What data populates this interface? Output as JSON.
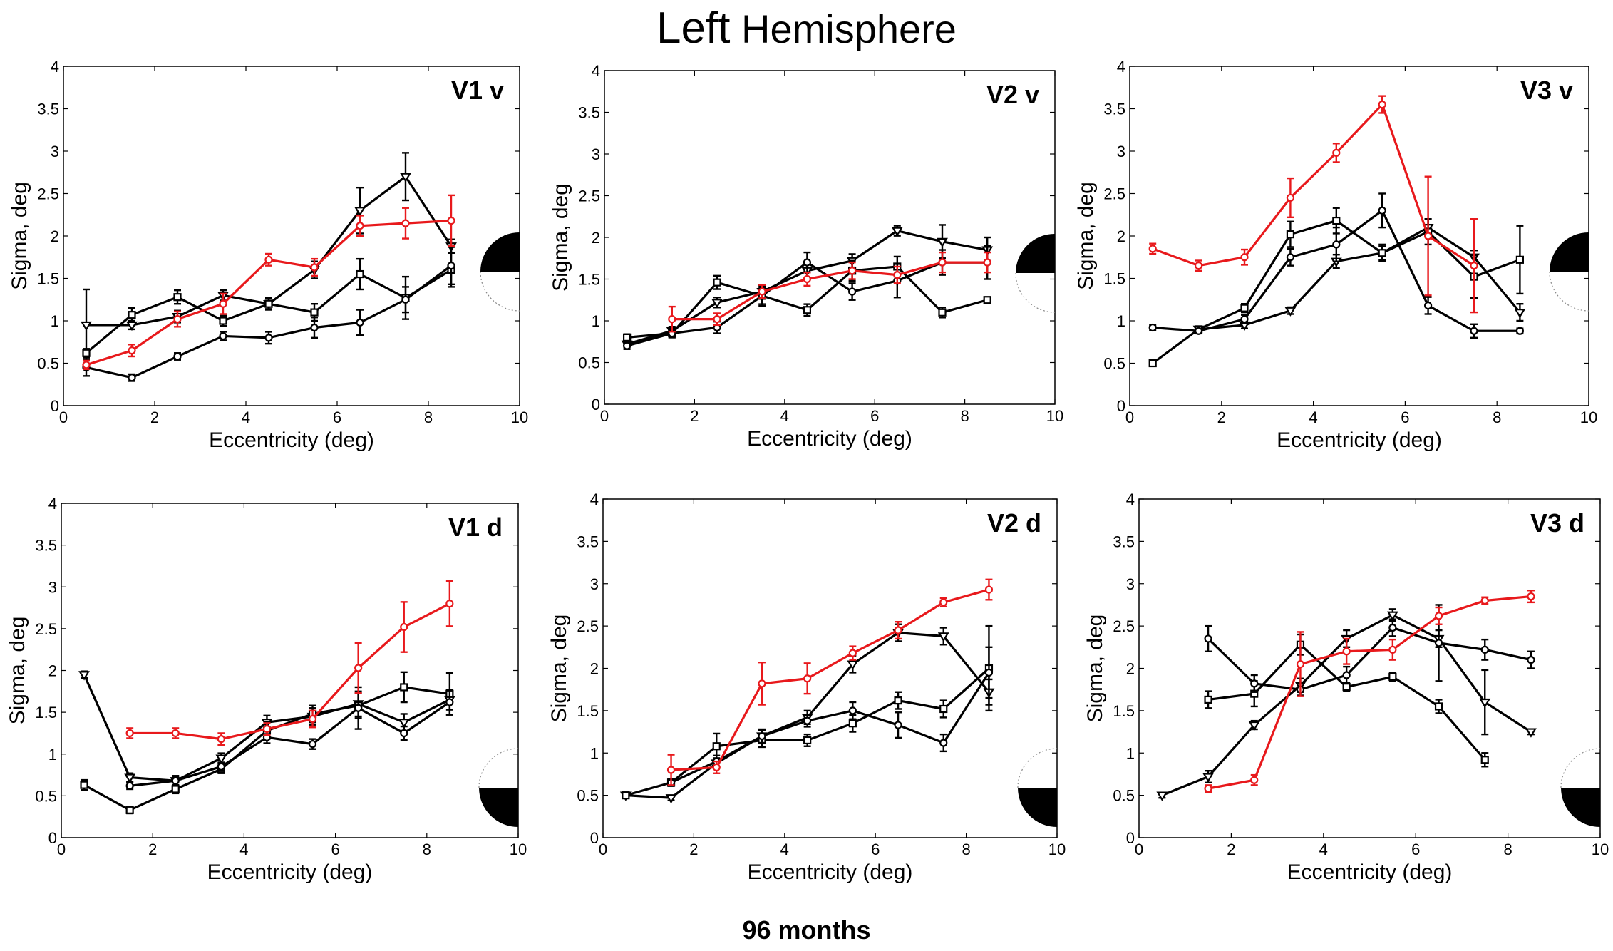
{
  "title": {
    "part1": "Left",
    "part2": "Hemisphere"
  },
  "subtitle": "96 months",
  "colors": {
    "highlight": "#e8191c",
    "series": "#000000"
  },
  "chart_data": [
    {
      "type": "line",
      "label": "V1 v",
      "xlabel": "Eccentricity (deg)",
      "ylabel": "Sigma, deg",
      "xlim": [
        0,
        10
      ],
      "ylim": [
        0,
        4
      ],
      "xticks": [
        "0",
        "2",
        "4",
        "6",
        "8",
        "10"
      ],
      "yticks": [
        "0",
        "0.5",
        "1",
        "1.5",
        "2",
        "2.5",
        "3",
        "3.5",
        "4"
      ],
      "quadrant": "upper-left",
      "series": [
        {
          "name": "red",
          "marker": "circle",
          "color": "#e8191c",
          "x": [
            0.5,
            1.5,
            2.5,
            3.5,
            4.5,
            5.5,
            6.5,
            7.5,
            8.5
          ],
          "y": [
            0.48,
            0.65,
            1.02,
            1.2,
            1.72,
            1.63,
            2.12,
            2.15,
            2.18
          ],
          "err": [
            0.05,
            0.07,
            0.09,
            0.12,
            0.07,
            0.1,
            0.12,
            0.18,
            0.3
          ]
        },
        {
          "name": "triangle",
          "marker": "triangle",
          "color": "#000000",
          "x": [
            0.5,
            1.5,
            2.5,
            3.5,
            4.5,
            5.5,
            6.5,
            7.5,
            8.5
          ],
          "y": [
            0.95,
            0.95,
            1.05,
            1.3,
            1.2,
            1.6,
            2.3,
            2.7,
            1.88
          ],
          "err": [
            0.42,
            0.05,
            0.07,
            0.06,
            0.07,
            0.1,
            0.27,
            0.28,
            0.08
          ]
        },
        {
          "name": "square",
          "marker": "square",
          "color": "#000000",
          "x": [
            0.5,
            1.5,
            2.5,
            3.5,
            4.5,
            5.5,
            6.5,
            7.5,
            8.5
          ],
          "y": [
            0.62,
            1.07,
            1.28,
            1.0,
            1.2,
            1.1,
            1.55,
            1.27,
            1.6
          ],
          "err": [
            0.05,
            0.08,
            0.08,
            0.06,
            0.06,
            0.1,
            0.18,
            0.25,
            0.2
          ]
        },
        {
          "name": "circle",
          "marker": "circle",
          "color": "#000000",
          "x": [
            0.5,
            1.5,
            2.5,
            3.5,
            4.5,
            5.5,
            6.5,
            7.5,
            8.5
          ],
          "y": [
            0.45,
            0.33,
            0.58,
            0.82,
            0.8,
            0.92,
            0.98,
            1.25,
            1.65
          ],
          "err": [
            0.1,
            0.04,
            0.04,
            0.05,
            0.07,
            0.12,
            0.15,
            0.15,
            0.22
          ]
        }
      ]
    },
    {
      "type": "line",
      "label": "V2 v",
      "xlabel": "Eccentricity (deg)",
      "ylabel": "Sigma, deg",
      "xlim": [
        0,
        10
      ],
      "ylim": [
        0,
        4
      ],
      "xticks": [
        "0",
        "2",
        "4",
        "6",
        "8",
        "10"
      ],
      "yticks": [
        "0",
        "0.5",
        "1",
        "1.5",
        "2",
        "2.5",
        "3",
        "3.5",
        "4"
      ],
      "quadrant": "upper-left",
      "series": [
        {
          "name": "red",
          "marker": "circle",
          "color": "#e8191c",
          "x": [
            1.5,
            2.5,
            3.5,
            4.5,
            5.5,
            6.5,
            7.5,
            8.5
          ],
          "y": [
            1.02,
            1.02,
            1.35,
            1.5,
            1.6,
            1.55,
            1.7,
            1.7
          ],
          "err": [
            0.15,
            0.07,
            0.08,
            0.08,
            0.1,
            0.1,
            0.12,
            0.12
          ]
        },
        {
          "name": "triangle",
          "marker": "triangle",
          "color": "#000000",
          "x": [
            0.5,
            1.5,
            2.5,
            3.5,
            4.5,
            5.5,
            6.5,
            7.5,
            8.5
          ],
          "y": [
            0.72,
            0.88,
            1.22,
            1.35,
            1.6,
            1.72,
            2.08,
            1.95,
            1.85
          ],
          "err": [
            0.04,
            0.05,
            0.06,
            0.08,
            0.1,
            0.08,
            0.06,
            0.2,
            0.15
          ]
        },
        {
          "name": "square",
          "marker": "square",
          "color": "#000000",
          "x": [
            0.5,
            1.5,
            2.5,
            3.5,
            4.5,
            5.5,
            6.5,
            7.5,
            8.5
          ],
          "y": [
            0.8,
            0.85,
            1.46,
            1.3,
            1.13,
            1.6,
            1.65,
            1.1,
            1.25
          ],
          "err": [
            0.04,
            0.05,
            0.08,
            0.1,
            0.07,
            0.12,
            0.12,
            0.06,
            0.03
          ]
        },
        {
          "name": "circle",
          "marker": "circle",
          "color": "#000000",
          "x": [
            0.5,
            1.5,
            2.5,
            3.5,
            4.5,
            5.5,
            6.5,
            7.5,
            8.5
          ],
          "y": [
            0.7,
            0.85,
            0.92,
            1.3,
            1.7,
            1.35,
            1.48,
            1.7,
            1.7
          ],
          "err": [
            0.04,
            0.05,
            0.07,
            0.12,
            0.12,
            0.1,
            0.2,
            0.15,
            0.2
          ]
        }
      ]
    },
    {
      "type": "line",
      "label": "V3 v",
      "xlabel": "Eccentricity (deg)",
      "ylabel": "Sigma, deg",
      "xlim": [
        0,
        10
      ],
      "ylim": [
        0,
        4
      ],
      "xticks": [
        "0",
        "2",
        "4",
        "6",
        "8",
        "10"
      ],
      "yticks": [
        "0",
        "0.5",
        "1",
        "1.5",
        "2",
        "2.5",
        "3",
        "3.5",
        "4"
      ],
      "quadrant": "upper-left",
      "series": [
        {
          "name": "red",
          "marker": "circle",
          "color": "#e8191c",
          "x": [
            0.5,
            1.5,
            2.5,
            3.5,
            4.5,
            5.5,
            6.5,
            7.5
          ],
          "y": [
            1.85,
            1.65,
            1.75,
            2.45,
            2.98,
            3.55,
            2.0,
            1.65
          ],
          "err": [
            0.06,
            0.06,
            0.09,
            0.23,
            0.11,
            0.1,
            0.7,
            0.55
          ]
        },
        {
          "name": "triangle",
          "marker": "triangle",
          "color": "#000000",
          "x": [
            1.5,
            2.5,
            3.5,
            4.5,
            5.5,
            6.5,
            7.5,
            8.5
          ],
          "y": [
            0.9,
            0.95,
            1.12,
            1.7,
            1.8,
            2.1,
            1.75,
            1.1
          ],
          "err": [
            0.03,
            0.04,
            0.04,
            0.08,
            0.08,
            0.1,
            0.08,
            0.1
          ]
        },
        {
          "name": "square",
          "marker": "square",
          "color": "#000000",
          "x": [
            0.5,
            1.5,
            2.5,
            3.5,
            4.5,
            5.5,
            6.5,
            7.5,
            8.5
          ],
          "y": [
            0.5,
            0.9,
            1.15,
            2.02,
            2.18,
            1.8,
            2.05,
            1.52,
            1.72
          ],
          "err": [
            0.03,
            0.03,
            0.05,
            0.15,
            0.15,
            0.1,
            0.15,
            0.25,
            0.4
          ]
        },
        {
          "name": "circle",
          "marker": "circle",
          "color": "#000000",
          "x": [
            0.5,
            1.5,
            2.5,
            3.5,
            4.5,
            5.5,
            6.5,
            7.5,
            8.5
          ],
          "y": [
            0.92,
            0.88,
            1.02,
            1.75,
            1.9,
            2.3,
            1.18,
            0.88,
            0.88
          ],
          "err": [
            0.03,
            0.03,
            0.05,
            0.1,
            0.2,
            0.2,
            0.1,
            0.08,
            0.03
          ]
        }
      ]
    },
    {
      "type": "line",
      "label": "V1 d",
      "xlabel": "Eccentricity (deg)",
      "ylabel": "Sigma, deg",
      "xlim": [
        0,
        10
      ],
      "ylim": [
        0,
        4
      ],
      "xticks": [
        "0",
        "2",
        "4",
        "6",
        "8",
        "10"
      ],
      "yticks": [
        "0",
        "0.5",
        "1",
        "1.5",
        "2",
        "2.5",
        "3",
        "3.5",
        "4"
      ],
      "quadrant": "lower-left",
      "series": [
        {
          "name": "red",
          "marker": "circle",
          "color": "#e8191c",
          "x": [
            1.5,
            2.5,
            3.5,
            4.5,
            5.5,
            6.5,
            7.5,
            8.5
          ],
          "y": [
            1.25,
            1.25,
            1.18,
            1.3,
            1.42,
            2.03,
            2.52,
            2.8
          ],
          "err": [
            0.06,
            0.06,
            0.07,
            0.07,
            0.1,
            0.3,
            0.3,
            0.27
          ]
        },
        {
          "name": "triangle",
          "marker": "triangle",
          "color": "#000000",
          "x": [
            0.5,
            1.5,
            2.5,
            3.5,
            4.5,
            5.5,
            6.5,
            7.5,
            8.5
          ],
          "y": [
            1.95,
            0.72,
            0.68,
            0.95,
            1.38,
            1.45,
            1.6,
            1.38,
            1.65
          ],
          "err": [
            0.04,
            0.05,
            0.06,
            0.06,
            0.08,
            0.1,
            0.15,
            0.1,
            0.12
          ]
        },
        {
          "name": "square",
          "marker": "square",
          "color": "#000000",
          "x": [
            0.5,
            1.5,
            2.5,
            3.5,
            4.5,
            5.5,
            6.5,
            7.5,
            8.5
          ],
          "y": [
            0.63,
            0.33,
            0.58,
            0.82,
            1.28,
            1.48,
            1.58,
            1.8,
            1.72
          ],
          "err": [
            0.06,
            0.04,
            0.05,
            0.05,
            0.1,
            0.1,
            0.15,
            0.18,
            0.25
          ]
        },
        {
          "name": "circle",
          "marker": "circle",
          "color": "#000000",
          "x": [
            1.5,
            2.5,
            3.5,
            4.5,
            5.5,
            6.5,
            7.5,
            8.5
          ],
          "y": [
            0.62,
            0.68,
            0.85,
            1.2,
            1.12,
            1.55,
            1.25,
            1.62
          ],
          "err": [
            0.04,
            0.05,
            0.05,
            0.07,
            0.06,
            0.25,
            0.08,
            0.15
          ]
        }
      ]
    },
    {
      "type": "line",
      "label": "V2 d",
      "xlabel": "Eccentricity (deg)",
      "ylabel": "Sigma, deg",
      "xlim": [
        0,
        10
      ],
      "ylim": [
        0,
        4
      ],
      "xticks": [
        "0",
        "2",
        "4",
        "6",
        "8",
        "10"
      ],
      "yticks": [
        "0",
        "0.5",
        "1",
        "1.5",
        "2",
        "2.5",
        "3",
        "3.5",
        "4"
      ],
      "quadrant": "lower-left",
      "series": [
        {
          "name": "red",
          "marker": "circle",
          "color": "#e8191c",
          "x": [
            1.5,
            2.5,
            3.5,
            4.5,
            5.5,
            6.5,
            7.5,
            8.5
          ],
          "y": [
            0.8,
            0.83,
            1.82,
            1.88,
            2.18,
            2.45,
            2.78,
            2.93
          ],
          "err": [
            0.18,
            0.07,
            0.25,
            0.18,
            0.08,
            0.1,
            0.05,
            0.12
          ]
        },
        {
          "name": "triangle",
          "marker": "triangle",
          "color": "#000000",
          "x": [
            0.5,
            1.5,
            2.5,
            3.5,
            4.5,
            5.5,
            6.5,
            7.5,
            8.5
          ],
          "y": [
            0.5,
            0.47,
            0.88,
            1.2,
            1.42,
            2.05,
            2.42,
            2.38,
            1.72
          ],
          "err": [
            0.03,
            0.03,
            0.06,
            0.07,
            0.08,
            0.1,
            0.1,
            0.1,
            0.15
          ]
        },
        {
          "name": "square",
          "marker": "square",
          "color": "#000000",
          "x": [
            0.5,
            1.5,
            2.5,
            3.5,
            4.5,
            5.5,
            6.5,
            7.5,
            8.5
          ],
          "y": [
            0.5,
            0.65,
            1.08,
            1.15,
            1.15,
            1.35,
            1.62,
            1.52,
            2.0
          ],
          "err": [
            0.03,
            0.04,
            0.15,
            0.08,
            0.07,
            0.1,
            0.1,
            0.1,
            0.5
          ]
        },
        {
          "name": "circle",
          "marker": "circle",
          "color": "#000000",
          "x": [
            1.5,
            2.5,
            3.5,
            4.5,
            5.5,
            6.5,
            7.5,
            8.5
          ],
          "y": [
            0.65,
            0.9,
            1.2,
            1.38,
            1.5,
            1.33,
            1.12,
            1.95
          ],
          "err": [
            0.04,
            0.07,
            0.08,
            0.07,
            0.1,
            0.15,
            0.1,
            0.3
          ]
        }
      ]
    },
    {
      "type": "line",
      "label": "V3 d",
      "xlabel": "Eccentricity (deg)",
      "ylabel": "Sigma, deg",
      "xlim": [
        0,
        10
      ],
      "ylim": [
        0,
        4
      ],
      "xticks": [
        "0",
        "2",
        "4",
        "6",
        "8",
        "10"
      ],
      "yticks": [
        "0",
        "0.5",
        "1",
        "1.5",
        "2",
        "2.5",
        "3",
        "3.5",
        "4"
      ],
      "quadrant": "lower-left",
      "series": [
        {
          "name": "red",
          "marker": "circle",
          "color": "#e8191c",
          "x": [
            1.5,
            2.5,
            3.5,
            4.5,
            5.5,
            6.5,
            7.5,
            8.5
          ],
          "y": [
            0.58,
            0.68,
            2.05,
            2.2,
            2.22,
            2.62,
            2.8,
            2.85
          ],
          "err": [
            0.04,
            0.06,
            0.38,
            0.15,
            0.12,
            0.1,
            0.04,
            0.07
          ]
        },
        {
          "name": "triangle",
          "marker": "triangle",
          "color": "#000000",
          "x": [
            0.5,
            1.5,
            2.5,
            3.5,
            4.5,
            5.5,
            6.5,
            7.5,
            8.5
          ],
          "y": [
            0.5,
            0.72,
            1.33,
            1.8,
            2.35,
            2.63,
            2.35,
            1.6,
            1.25
          ],
          "err": [
            0.03,
            0.07,
            0.05,
            0.08,
            0.1,
            0.07,
            0.1,
            0.38,
            0.03
          ]
        },
        {
          "name": "square",
          "marker": "square",
          "color": "#000000",
          "x": [
            1.5,
            2.5,
            3.5,
            4.5,
            5.5,
            6.5,
            7.5
          ],
          "y": [
            1.63,
            1.7,
            2.28,
            1.78,
            1.9,
            1.55,
            0.92
          ],
          "err": [
            0.1,
            0.15,
            0.12,
            0.05,
            0.05,
            0.08,
            0.08
          ]
        },
        {
          "name": "circle",
          "marker": "circle",
          "color": "#000000",
          "x": [
            1.5,
            2.5,
            3.5,
            4.5,
            5.5,
            6.5,
            7.5,
            8.5
          ],
          "y": [
            2.35,
            1.82,
            1.75,
            1.92,
            2.48,
            2.3,
            2.22,
            2.1
          ],
          "err": [
            0.15,
            0.1,
            0.07,
            0.1,
            0.1,
            0.45,
            0.12,
            0.1
          ]
        }
      ]
    }
  ]
}
